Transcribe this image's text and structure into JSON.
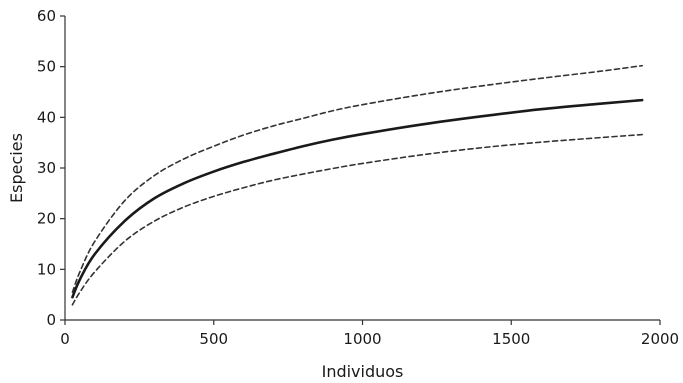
{
  "chart_data": {
    "type": "line",
    "title": "",
    "xlabel": "Individuos",
    "ylabel": "Especies",
    "xlim": [
      0,
      2000
    ],
    "ylim": [
      0,
      60
    ],
    "xticks": [
      0,
      500,
      1000,
      1500,
      2000
    ],
    "yticks": [
      0,
      10,
      20,
      30,
      40,
      50,
      60
    ],
    "xtick_labels": [
      "0",
      "500",
      "1000",
      "1500",
      "2000"
    ],
    "ytick_labels": [
      "0",
      "10",
      "20",
      "30",
      "40",
      "50",
      "60"
    ],
    "grid": false,
    "legend": "none",
    "x": [
      25,
      50,
      100,
      200,
      300,
      400,
      500,
      600,
      700,
      800,
      900,
      1000,
      1200,
      1400,
      1600,
      1800,
      1940
    ],
    "series": [
      {
        "role": "upper-bound",
        "style": "dashed",
        "color": "#333333",
        "values": [
          5.5,
          9.5,
          15.5,
          23.5,
          28.5,
          31.8,
          34.3,
          36.5,
          38.3,
          39.8,
          41.3,
          42.5,
          44.5,
          46.2,
          47.7,
          49.1,
          50.2
        ]
      },
      {
        "role": "mean",
        "style": "solid",
        "color": "#1a1a1a",
        "values": [
          4.5,
          8.0,
          13.0,
          19.5,
          24.0,
          27.0,
          29.3,
          31.2,
          32.8,
          34.3,
          35.6,
          36.7,
          38.6,
          40.2,
          41.6,
          42.7,
          43.4
        ]
      },
      {
        "role": "lower-bound",
        "style": "dashed",
        "color": "#333333",
        "values": [
          3.0,
          5.5,
          9.5,
          15.5,
          19.5,
          22.3,
          24.4,
          26.1,
          27.6,
          28.8,
          29.9,
          30.9,
          32.6,
          34.0,
          35.1,
          36.0,
          36.6
        ]
      }
    ]
  }
}
